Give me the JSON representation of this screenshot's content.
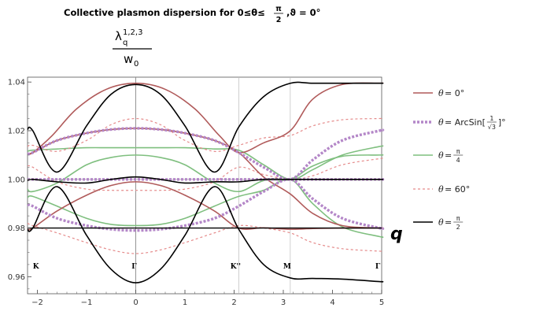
{
  "chart_data": {
    "type": "line",
    "title": {
      "text": "Collective plasmon dispersion for 0≤θ≤",
      "frac_num": "π",
      "frac_den": "2",
      "tail": ",ϑ = 0°"
    },
    "ylabel": {
      "sym": "λ",
      "sup": "1,2,3",
      "sub": "q",
      "den": "w",
      "den_sub": "0"
    },
    "xlabel": "q",
    "xlim": [
      -2.2,
      5.0
    ],
    "ylim": [
      0.953,
      1.042
    ],
    "xticks": [
      -2,
      -1,
      0,
      1,
      2,
      3,
      4,
      5
    ],
    "xtick_labels": [
      "−2",
      "−1",
      "0",
      "1",
      "2",
      "3",
      "4",
      "5"
    ],
    "yticks": [
      0.96,
      0.98,
      1.0,
      1.02,
      1.04
    ],
    "ytick_labels": [
      "0.96",
      "0.98",
      "1.00",
      "1.02",
      "1.04"
    ],
    "vertical_lines": [
      0,
      2.094,
      3.1416
    ],
    "points": [
      {
        "label": "K",
        "x": -2.094
      },
      {
        "label": "Γ",
        "x": 0
      },
      {
        "label": "K''",
        "x": 2.094
      },
      {
        "label": "M",
        "x": 3.1416
      },
      {
        "label": "Γ",
        "x": 4.953
      }
    ],
    "legend": {
      "position": "right",
      "entries": [
        {
          "pre": "θ",
          "text": " = 0°"
        },
        {
          "pre": "θ",
          "text": " = ArcSin[",
          "frac_num": "1",
          "frac_den": "√3",
          "tail": "]°"
        },
        {
          "pre": "θ",
          "text": " = ",
          "frac_num": "π",
          "frac_den": "4"
        },
        {
          "pre": "θ",
          "text": " = 60°"
        },
        {
          "pre": "θ",
          "text": " = ",
          "frac_num": "π",
          "frac_den": "2"
        }
      ]
    },
    "series": [
      {
        "group": 0,
        "color": "#b05a5a",
        "width": 1.6,
        "dash": "",
        "x": [
          -2.2,
          -2.094,
          -1.7,
          -1.2,
          -0.6,
          0,
          0.6,
          1.2,
          1.7,
          2.094,
          2.6,
          3.1416,
          3.6,
          4.2,
          4.953,
          5.0
        ],
        "values": [
          1.0105,
          1.011,
          1.018,
          1.029,
          1.037,
          1.0395,
          1.037,
          1.029,
          1.018,
          1.011,
          1.015,
          1.02,
          1.033,
          1.039,
          1.0395,
          1.0395
        ]
      },
      {
        "group": 0,
        "color": "#b05a5a",
        "width": 1.6,
        "dash": "",
        "x": [
          -2.2,
          -2.094,
          -1.6,
          -1.0,
          -0.5,
          0,
          0.5,
          1.0,
          1.6,
          2.094,
          2.6,
          3.1416,
          3.6,
          4.2,
          4.953,
          5.0
        ],
        "values": [
          1.0105,
          1.011,
          1.016,
          1.019,
          1.0205,
          1.021,
          1.0205,
          1.019,
          1.016,
          1.011,
          1.001,
          0.994,
          0.986,
          0.981,
          0.98,
          0.98
        ]
      },
      {
        "group": 0,
        "color": "#b05a5a",
        "width": 1.6,
        "dash": "",
        "x": [
          -2.2,
          -2.094,
          -1.6,
          -1.0,
          -0.5,
          0,
          0.5,
          1.0,
          1.6,
          2.094,
          2.6,
          3.1416,
          3.6,
          4.2,
          4.953,
          5.0
        ],
        "values": [
          0.9795,
          0.98,
          0.987,
          0.9935,
          0.9975,
          0.999,
          0.9975,
          0.9935,
          0.987,
          0.98,
          0.9801,
          0.9795,
          0.9798,
          0.98,
          0.98,
          0.98
        ]
      },
      {
        "group": 1,
        "color": "#b487c8",
        "width": 3.4,
        "dash": "3 2",
        "x": [
          -2.2,
          -2.094,
          -1.6,
          -1.0,
          -0.5,
          0,
          0.5,
          1.0,
          1.6,
          2.094,
          2.6,
          3.1416,
          3.6,
          4.2,
          4.953,
          5.0
        ],
        "values": [
          1.0105,
          1.011,
          1.016,
          1.019,
          1.0205,
          1.021,
          1.0205,
          1.019,
          1.016,
          1.011,
          1.005,
          1.0,
          1.008,
          1.016,
          1.02,
          1.02
        ]
      },
      {
        "group": 1,
        "color": "#b487c8",
        "width": 3.4,
        "dash": "3 2",
        "x": [
          -2.2,
          -2.094,
          -1.6,
          -1.0,
          -0.5,
          0,
          0.5,
          1.0,
          1.6,
          2.094,
          2.6,
          3.1416,
          3.6,
          4.2,
          4.953,
          5.0
        ],
        "values": [
          1.0,
          1.0,
          1.0,
          1.0,
          1.0,
          1.0,
          1.0,
          1.0,
          1.0,
          1.0,
          1.0,
          1.0,
          1.0,
          1.0,
          1.0,
          1.0
        ]
      },
      {
        "group": 1,
        "color": "#b487c8",
        "width": 3.4,
        "dash": "3 2",
        "x": [
          -2.2,
          -2.094,
          -1.6,
          -1.0,
          -0.5,
          0,
          0.5,
          1.0,
          1.6,
          2.094,
          2.6,
          3.1416,
          3.6,
          4.2,
          4.953,
          5.0
        ],
        "values": [
          0.9895,
          0.989,
          0.984,
          0.981,
          0.9795,
          0.979,
          0.9795,
          0.981,
          0.984,
          0.989,
          0.995,
          1.0,
          0.992,
          0.984,
          0.98,
          0.98
        ]
      },
      {
        "group": 2,
        "color": "#7fbf7f",
        "width": 1.6,
        "dash": "",
        "x": [
          -2.2,
          -2.094,
          -1.6,
          -1.0,
          -0.5,
          0,
          0.5,
          1.0,
          1.6,
          2.094,
          2.6,
          3.1416,
          3.6,
          4.2,
          4.953,
          5.0
        ],
        "values": [
          1.0115,
          1.012,
          1.0125,
          1.013,
          1.013,
          1.013,
          1.013,
          1.013,
          1.0125,
          1.012,
          1.006,
          1.0,
          1.004,
          1.01,
          1.0135,
          1.0135
        ]
      },
      {
        "group": 2,
        "color": "#7fbf7f",
        "width": 1.6,
        "dash": "",
        "x": [
          -2.2,
          -2.094,
          -1.6,
          -1.0,
          -0.5,
          0,
          0.5,
          1.0,
          1.6,
          2.094,
          2.6,
          3.1416,
          3.6,
          4.2,
          4.953,
          5.0
        ],
        "values": [
          0.996,
          0.995,
          0.9985,
          1.006,
          1.009,
          1.01,
          1.009,
          1.006,
          0.9985,
          0.995,
          0.9995,
          1.0,
          1.0055,
          1.0095,
          1.01,
          1.01
        ]
      },
      {
        "group": 2,
        "color": "#7fbf7f",
        "width": 1.6,
        "dash": "",
        "x": [
          -2.2,
          -2.094,
          -1.6,
          -1.0,
          -0.5,
          0,
          0.5,
          1.0,
          1.6,
          2.094,
          2.6,
          3.1416,
          3.6,
          4.2,
          4.953,
          5.0
        ],
        "values": [
          0.9925,
          0.993,
          0.989,
          0.984,
          0.9815,
          0.981,
          0.9815,
          0.984,
          0.989,
          0.993,
          0.9955,
          1.0,
          0.99,
          0.9805,
          0.9765,
          0.9765
        ]
      },
      {
        "group": 3,
        "color": "#e58a8a",
        "width": 1.2,
        "dash": "3 3",
        "x": [
          -2.2,
          -2.094,
          -1.6,
          -1.0,
          -0.5,
          0,
          0.5,
          1.0,
          1.6,
          2.094,
          2.6,
          3.1416,
          3.6,
          4.2,
          4.953,
          5.0
        ],
        "values": [
          1.0135,
          1.014,
          1.0115,
          1.016,
          1.0225,
          1.025,
          1.0225,
          1.016,
          1.0115,
          1.014,
          1.017,
          1.018,
          1.022,
          1.0245,
          1.025,
          1.025
        ]
      },
      {
        "group": 3,
        "color": "#e58a8a",
        "width": 1.2,
        "dash": "3 3",
        "x": [
          -2.2,
          -2.094,
          -1.6,
          -1.0,
          -0.5,
          0,
          0.5,
          1.0,
          1.6,
          2.094,
          2.6,
          3.1416,
          3.6,
          4.2,
          4.953,
          5.0
        ],
        "values": [
          1.0055,
          1.005,
          0.999,
          0.996,
          0.9955,
          0.9955,
          0.9955,
          0.996,
          0.999,
          1.005,
          1.002,
          1.0,
          1.0015,
          1.006,
          1.0085,
          1.0085
        ]
      },
      {
        "group": 3,
        "color": "#e58a8a",
        "width": 1.2,
        "dash": "3 3",
        "x": [
          -2.2,
          -2.094,
          -1.6,
          -1.0,
          -0.5,
          0,
          0.5,
          1.0,
          1.6,
          2.094,
          2.6,
          3.1416,
          3.6,
          4.2,
          4.953,
          5.0
        ],
        "values": [
          0.982,
          0.981,
          0.978,
          0.974,
          0.971,
          0.9695,
          0.971,
          0.974,
          0.978,
          0.981,
          0.98,
          0.978,
          0.974,
          0.9715,
          0.9705,
          0.9705
        ]
      },
      {
        "group": 4,
        "color": "#000000",
        "width": 1.6,
        "dash": "",
        "x": [
          -2.2,
          -2.094,
          -1.6,
          -1.0,
          -0.5,
          0,
          0.5,
          1.0,
          1.6,
          2.094,
          2.6,
          3.1416,
          3.6,
          4.2,
          4.953,
          5.0
        ],
        "values": [
          1.0205,
          1.02,
          1.003,
          1.022,
          1.035,
          1.039,
          1.035,
          1.022,
          1.003,
          1.0215,
          1.034,
          1.0395,
          1.0395,
          1.0395,
          1.0395,
          1.0395
        ]
      },
      {
        "group": 4,
        "color": "#000000",
        "width": 1.6,
        "dash": "",
        "x": [
          -2.2,
          -2.094,
          -1.6,
          -1.0,
          -0.5,
          0,
          0.5,
          1.0,
          1.6,
          2.094,
          2.6,
          3.1416,
          3.6,
          4.2,
          4.953,
          5.0
        ],
        "values": [
          0.9995,
          1.0,
          0.999,
          0.9985,
          1.0,
          1.001,
          1.0,
          0.9985,
          0.999,
          0.999,
          1.0,
          1.0,
          1.0,
          1.0,
          1.0,
          1.0
        ]
      },
      {
        "group": 4,
        "color": "#000000",
        "width": 1.6,
        "dash": "",
        "x": [
          -2.2,
          -2.094,
          -1.6,
          -1.0,
          -0.5,
          0,
          0.5,
          1.0,
          1.6,
          2.094,
          2.6,
          3.1416,
          3.6,
          4.2,
          4.953,
          5.0
        ],
        "values": [
          0.9795,
          0.98,
          0.997,
          0.977,
          0.963,
          0.9575,
          0.963,
          0.977,
          0.997,
          0.9795,
          0.965,
          0.9595,
          0.9593,
          0.959,
          0.958,
          0.958
        ]
      },
      {
        "group": 4,
        "color": "#000000",
        "width": 1.4,
        "dash": "",
        "x": [
          -2.2,
          5.0
        ],
        "values": [
          0.98,
          0.98
        ]
      }
    ]
  }
}
